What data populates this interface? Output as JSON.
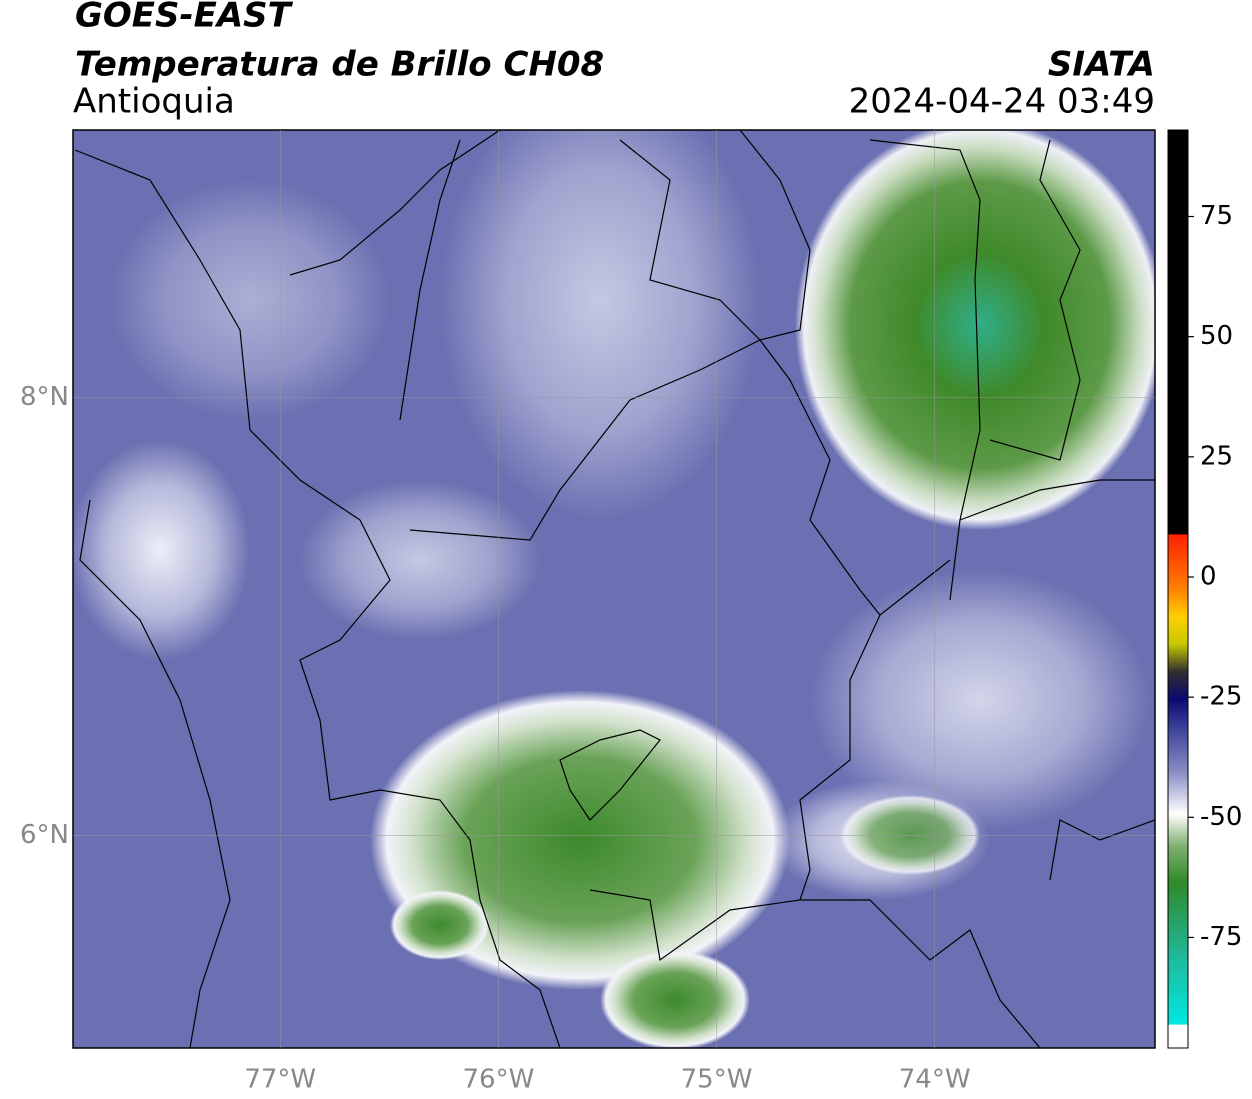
{
  "chart_data": {
    "type": "map",
    "title": "GOES-EAST",
    "subtitle": "Temperatura de Brillo CH08",
    "region": "Antioquia",
    "source": "SIATA",
    "timestamp": "2024-04-24 03:49",
    "xlim": [
      -77.95,
      -72.99
    ],
    "ylim": [
      5.03,
      9.22
    ],
    "xticks": [
      {
        "value": -77,
        "label": "77°W"
      },
      {
        "value": -76,
        "label": "76°W"
      },
      {
        "value": -75,
        "label": "75°W"
      },
      {
        "value": -74,
        "label": "74°W"
      }
    ],
    "yticks": [
      {
        "value": 8,
        "label": "8°N"
      },
      {
        "value": 6,
        "label": "6°N"
      }
    ],
    "grid": true,
    "colorbar": {
      "lim": [
        -98,
        93
      ],
      "ticks": [
        75,
        50,
        25,
        0,
        -25,
        -50,
        -75
      ]
    }
  }
}
